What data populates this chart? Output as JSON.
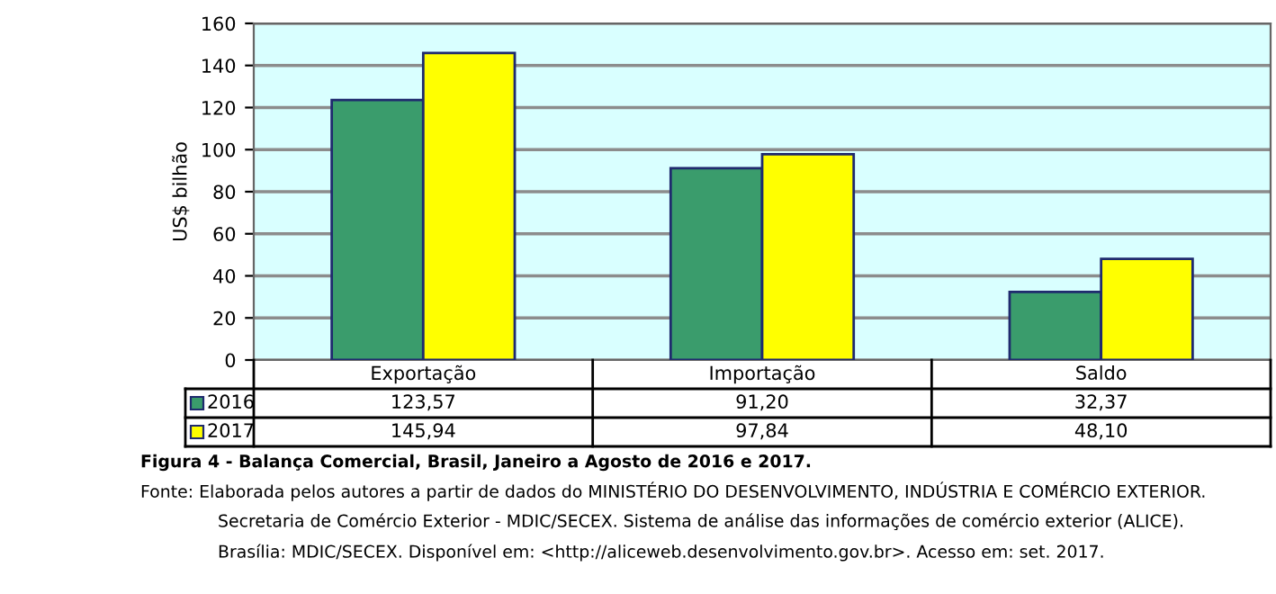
{
  "chart_data": {
    "type": "bar",
    "ylabel": "US$ bilhão",
    "categories": [
      "Exportação",
      "Importação",
      "Saldo"
    ],
    "series": [
      {
        "name": "2016",
        "color": "#3a9c6c",
        "values": [
          123.57,
          91.2,
          32.37
        ],
        "value_labels": [
          "123,57",
          "91,20",
          "32,37"
        ]
      },
      {
        "name": "2017",
        "color": "#ffff00",
        "values": [
          145.94,
          97.84,
          48.1
        ],
        "value_labels": [
          "145,94",
          "97,84",
          "48,10"
        ]
      }
    ],
    "ylim": [
      0,
      160
    ],
    "yticks": [
      0,
      20,
      40,
      60,
      80,
      100,
      120,
      140,
      160
    ],
    "grid": "y",
    "legend": "bottom left",
    "annotations": [
      "Figura 4 - Balança Comercial, Brasil, Janeiro a Agosto de 2016 e 2017.",
      "Fonte: Elaborada pelos autores a partir de dados do MINISTÉRIO DO DESENVOLVIMENTO, INDÚSTRIA E COMÉRCIO EXTERIOR.",
      "Secretaria de Comércio Exterior - MDIC/SECEX. Sistema de análise das informações de comércio exterior (ALICE).",
      "Brasília: MDIC/SECEX. Disponível em: <http://aliceweb.desenvolvimento.gov.br>. Acesso em: set. 2017."
    ]
  }
}
